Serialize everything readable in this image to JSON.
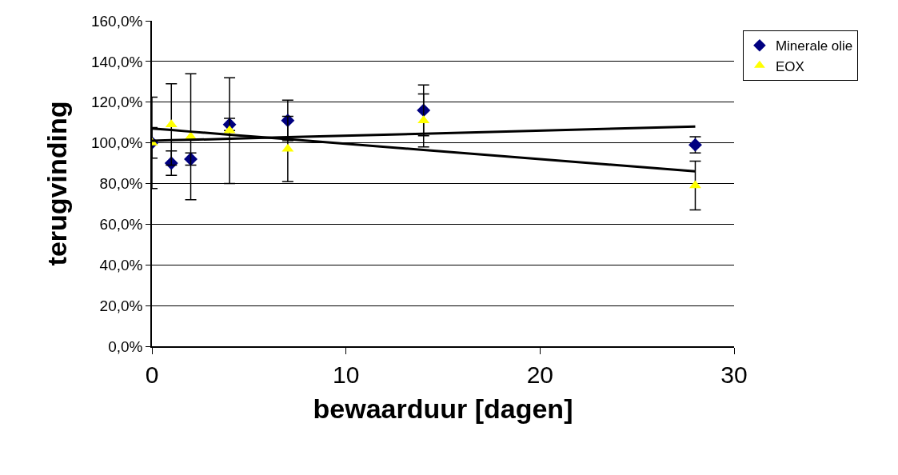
{
  "chart_data": {
    "type": "scatter",
    "xlabel": "bewaarduur [dagen]",
    "ylabel": "terugvinding",
    "x": [
      0,
      1,
      2,
      4,
      7,
      14,
      28
    ],
    "xlim": [
      0,
      30
    ],
    "xticks": [
      0,
      10,
      20,
      30
    ],
    "ylim": [
      0,
      160
    ],
    "yticks": [
      {
        "value": 0,
        "label": "0,0%"
      },
      {
        "value": 20,
        "label": "20,0%"
      },
      {
        "value": 40,
        "label": "40,0%"
      },
      {
        "value": 60,
        "label": "60,0%"
      },
      {
        "value": 80,
        "label": "80,0%"
      },
      {
        "value": 100,
        "label": "100,0%"
      },
      {
        "value": 120,
        "label": "120,0%"
      },
      {
        "value": 140,
        "label": "140,0%"
      },
      {
        "value": 160,
        "label": "160,0%"
      }
    ],
    "grid": "y",
    "legend": "top right",
    "series": [
      {
        "name": "Minerale olie",
        "color": "#000080",
        "marker": "diamond",
        "values": [
          100,
          90,
          92,
          109,
          111,
          116,
          99
        ],
        "errors": [
          7.5,
          6,
          3,
          3,
          10,
          12.5,
          4
        ]
      },
      {
        "name": "EOX",
        "color": "#ffff00",
        "marker": "triangle",
        "values": [
          100,
          109,
          103,
          106,
          97,
          111,
          79
        ],
        "errors": [
          22.5,
          20,
          31,
          26,
          16,
          13,
          12
        ]
      },
      {
        "type": "line",
        "color": "#000000",
        "marker": "none",
        "values": [
          101,
          101.3,
          101.5,
          102,
          102.8,
          104.5,
          108
        ]
      },
      {
        "type": "line",
        "color": "#000000",
        "marker": "none",
        "values": [
          107,
          106.3,
          105.5,
          104,
          101.8,
          96.5,
          86
        ]
      }
    ]
  }
}
